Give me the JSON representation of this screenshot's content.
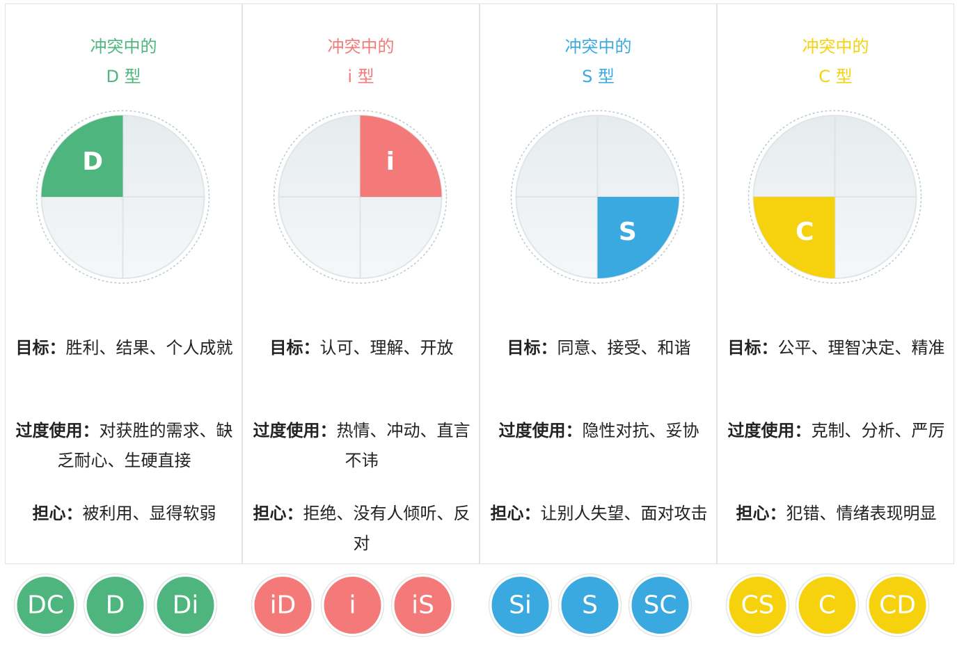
{
  "columns": [
    {
      "color": "#4db57d",
      "title": [
        "冲突中的",
        "D 型"
      ],
      "letter": "D",
      "sections": [
        {
          "label": "目标：",
          "text": "胜利、结果、个人成就"
        },
        {
          "label": "过度使用：",
          "text": "对获胜的需求、缺乏耐心、生硬直接"
        },
        {
          "label": "担心：",
          "text": "被利用、显得软弱"
        }
      ],
      "badges": [
        "DC",
        "D",
        "Di"
      ]
    },
    {
      "color": "#f47a7a",
      "title": [
        "冲突中的",
        "i 型"
      ],
      "letter": "i",
      "sections": [
        {
          "label": "目标：",
          "text": "认可、理解、开放"
        },
        {
          "label": "过度使用：",
          "text": "热情、冲动、直言不讳"
        },
        {
          "label": "担心：",
          "text": "拒绝、没有人倾听、反对"
        }
      ],
      "badges": [
        "iD",
        "i",
        "iS"
      ]
    },
    {
      "color": "#3aa9e0",
      "title": [
        "冲突中的",
        "S 型"
      ],
      "letter": "S",
      "sections": [
        {
          "label": "目标：",
          "text": "同意、接受、和谐"
        },
        {
          "label": "过度使用：",
          "text": "隐性对抗、妥协"
        },
        {
          "label": "担心：",
          "text": "让别人失望、面对攻击"
        }
      ],
      "badges": [
        "Si",
        "S",
        "SC"
      ]
    },
    {
      "color": "#f6d10e",
      "title": [
        "冲突中的",
        "C 型"
      ],
      "letter": "C",
      "sections": [
        {
          "label": "目标：",
          "text": "公平、理智决定、精准"
        },
        {
          "label": "过度使用：",
          "text": "克制、分析、严厉"
        },
        {
          "label": "担心：",
          "text": "犯错、情绪表现明显"
        }
      ],
      "badges": [
        "CS",
        "C",
        "CD"
      ]
    }
  ]
}
